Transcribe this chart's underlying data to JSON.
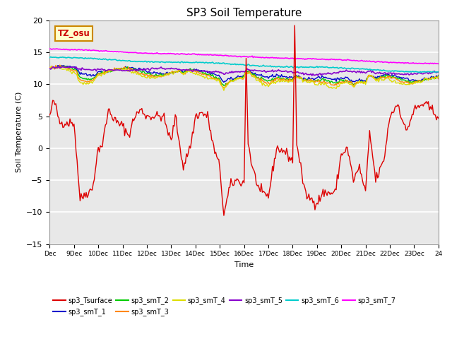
{
  "title": "SP3 Soil Temperature",
  "xlabel": "Time",
  "ylabel": "Soil Temperature (C)",
  "ylim": [
    -15,
    20
  ],
  "xlim": [
    0,
    384
  ],
  "annotation_text": "TZ_osu",
  "annotation_color": "#cc0000",
  "annotation_bg": "#ffffcc",
  "annotation_border": "#cc8800",
  "plot_bg_color": "#e8e8e8",
  "grid_color": "#ffffff",
  "fig_bg_color": "#ffffff",
  "series_colors": {
    "sp3_Tsurface": "#dd0000",
    "sp3_smT_1": "#0000cc",
    "sp3_smT_2": "#00cc00",
    "sp3_smT_3": "#ff8800",
    "sp3_smT_4": "#dddd00",
    "sp3_smT_5": "#8800cc",
    "sp3_smT_6": "#00cccc",
    "sp3_smT_7": "#ff00ff"
  },
  "xtick_labels": [
    "Dec",
    "9Dec",
    "10Dec",
    "11Dec",
    "12Dec",
    "13Dec",
    "14Dec",
    "15Dec",
    "16Dec",
    "17Dec",
    "18Dec",
    "19Dec",
    "20Dec",
    "21Dec",
    "22Dec",
    "23Dec",
    "24"
  ],
  "xtick_positions": [
    0,
    24,
    48,
    72,
    96,
    120,
    144,
    168,
    192,
    216,
    240,
    264,
    288,
    312,
    336,
    360,
    384
  ]
}
